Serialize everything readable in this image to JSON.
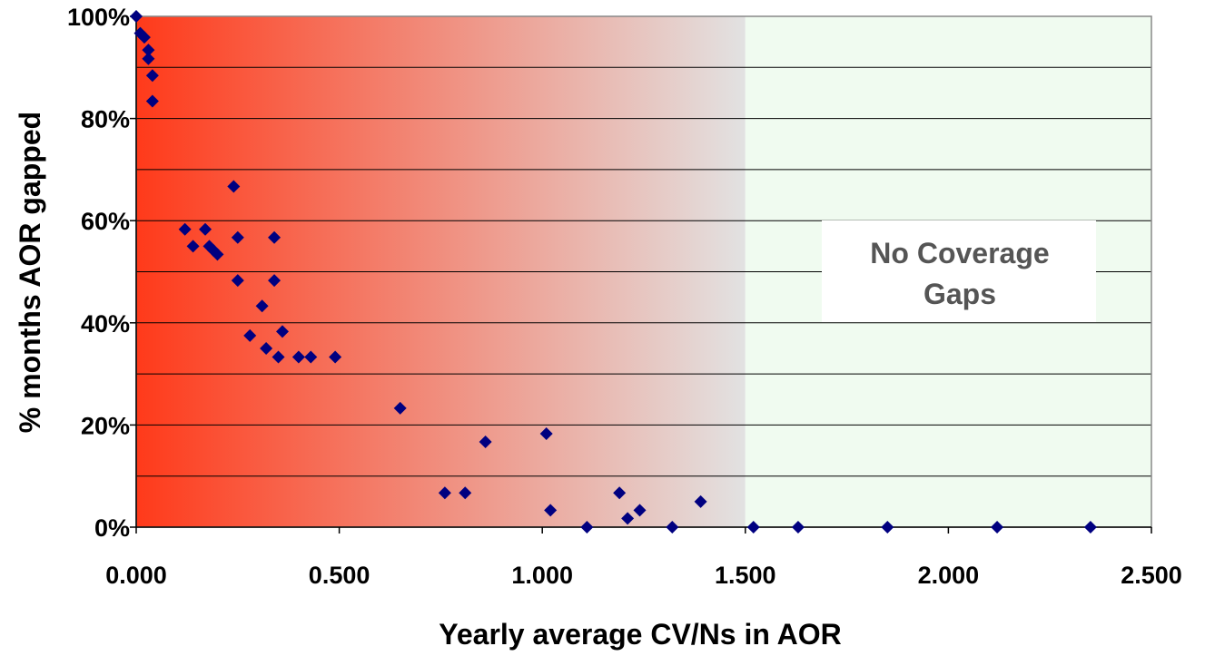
{
  "chart_data": {
    "type": "scatter",
    "xlabel": "Yearly average CV/Ns in AOR",
    "ylabel": "% months AOR gapped",
    "xlim": [
      0,
      2.5
    ],
    "ylim": [
      0,
      1
    ],
    "x_ticks": [
      "0.000",
      "0.500",
      "1.000",
      "1.500",
      "2.000",
      "2.500"
    ],
    "y_ticks": [
      "0%",
      "20%",
      "40%",
      "60%",
      "80%",
      "100%"
    ],
    "grid": true,
    "background": {
      "gradient_from": "#ff3a1a",
      "gradient_to": "#e2e2e2",
      "gradient_end_x": 1.5,
      "no_gap_region_color": "#f0fbf0"
    },
    "annotation": {
      "lines": [
        "No Coverage",
        "Gaps"
      ],
      "color": "#555555"
    },
    "marker_color": "#000080",
    "series": [
      {
        "x": [
          0.0,
          0.01,
          0.02,
          0.03,
          0.03,
          0.04,
          0.04,
          0.12,
          0.14,
          0.17,
          0.18,
          0.19,
          0.2,
          0.24,
          0.25,
          0.25,
          0.28,
          0.31,
          0.32,
          0.34,
          0.34,
          0.35,
          0.36,
          0.4,
          0.43,
          0.49,
          0.65,
          0.76,
          0.81,
          0.86,
          1.01,
          1.02,
          1.11,
          1.19,
          1.21,
          1.24,
          1.32,
          1.39,
          1.52,
          1.63,
          1.85,
          2.12,
          2.35
        ],
        "y": [
          1.0,
          0.967,
          0.959,
          0.934,
          0.917,
          0.884,
          0.834,
          0.583,
          0.55,
          0.583,
          0.55,
          0.542,
          0.534,
          0.667,
          0.567,
          0.483,
          0.375,
          0.433,
          0.35,
          0.483,
          0.567,
          0.333,
          0.383,
          0.333,
          0.333,
          0.333,
          0.233,
          0.067,
          0.067,
          0.167,
          0.183,
          0.033,
          0.0,
          0.067,
          0.017,
          0.033,
          0.0,
          0.05,
          0.0,
          0.0,
          0.0,
          0.0,
          0.0
        ]
      }
    ]
  }
}
